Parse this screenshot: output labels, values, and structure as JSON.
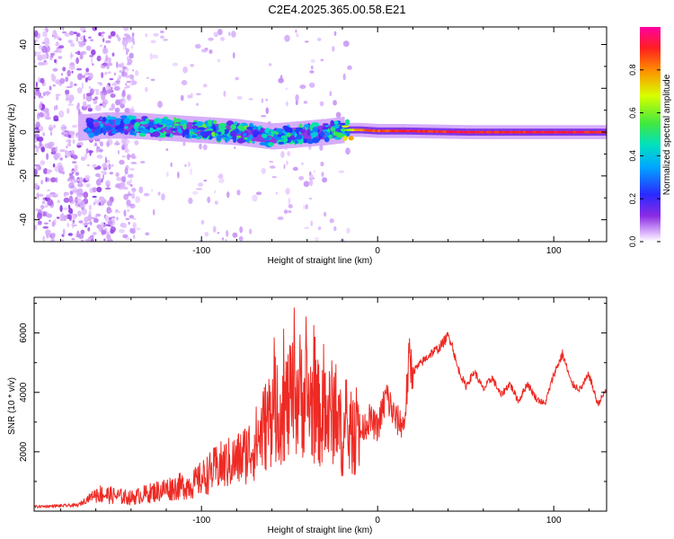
{
  "title": "C2E4.2025.365.00.58.E21",
  "colors": {
    "snr_line": "#ee2a24",
    "axis": "#000000"
  },
  "chart_data": [
    {
      "type": "heatmap",
      "xlabel": "Height of straight line (km)",
      "ylabel": "Frequency (Hz)",
      "xlim": [
        -195,
        130
      ],
      "ylim": [
        -50,
        48
      ],
      "x_ticks": [
        -100,
        0,
        100
      ],
      "x_tick_labels": [
        "-100",
        "0",
        "100"
      ],
      "y_ticks": [
        -40,
        -20,
        0,
        20,
        40
      ],
      "y_tick_labels": [
        "-40",
        "-20",
        "0",
        "20",
        "40"
      ],
      "colorbar": {
        "label": "Normalized spectral amplitude",
        "range": [
          0,
          1
        ],
        "ticks": [
          0.0,
          0.2,
          0.4,
          0.6,
          0.8
        ],
        "tick_labels": [
          "0.0",
          "0.2",
          "0.4",
          "0.6",
          "0.8"
        ]
      },
      "ridge": [
        {
          "x": -170,
          "f": 2,
          "amp": 0.3
        },
        {
          "x": -155,
          "f": 3,
          "amp": 0.35
        },
        {
          "x": -140,
          "f": 3,
          "amp": 0.4
        },
        {
          "x": -120,
          "f": 2,
          "amp": 0.45
        },
        {
          "x": -100,
          "f": 1,
          "amp": 0.5
        },
        {
          "x": -80,
          "f": 0,
          "amp": 0.5
        },
        {
          "x": -60,
          "f": -2,
          "amp": 0.45
        },
        {
          "x": -45,
          "f": -1,
          "amp": 0.45
        },
        {
          "x": -30,
          "f": 0,
          "amp": 0.4
        },
        {
          "x": -20,
          "f": 1,
          "amp": 0.55
        },
        {
          "x": -10,
          "f": 1,
          "amp": 0.85
        },
        {
          "x": 0,
          "f": 0.5,
          "amp": 0.9
        },
        {
          "x": 15,
          "f": 0.5,
          "amp": 0.95
        },
        {
          "x": 50,
          "f": 0,
          "amp": 0.95
        },
        {
          "x": 100,
          "f": 0,
          "amp": 0.95
        },
        {
          "x": 130,
          "f": 0,
          "amp": 0.95
        }
      ]
    },
    {
      "type": "line",
      "xlabel": "Height of straight line (km)",
      "ylabel": "SNR (10 * v/v)",
      "xlim": [
        -195,
        130
      ],
      "ylim": [
        0,
        7200
      ],
      "x_ticks": [
        -100,
        0,
        100
      ],
      "x_tick_labels": [
        "-100",
        "0",
        "100"
      ],
      "y_ticks": [
        2000,
        4000,
        6000
      ],
      "y_tick_labels": [
        "2000",
        "4000",
        "6000"
      ],
      "series": [
        {
          "name": "SNR",
          "x": [
            -195,
            -170,
            -160,
            -140,
            -120,
            -105,
            -90,
            -80,
            -70,
            -60,
            -50,
            -45,
            -40,
            -30,
            -25,
            -20,
            -15,
            -10,
            -5,
            0,
            5,
            10,
            15,
            18,
            20,
            25,
            30,
            35,
            40,
            42,
            45,
            50,
            55,
            60,
            65,
            70,
            75,
            80,
            85,
            90,
            95,
            100,
            105,
            110,
            115,
            120,
            125,
            130
          ],
          "y": [
            150,
            200,
            600,
            450,
            750,
            900,
            1500,
            1700,
            2200,
            3300,
            3600,
            4000,
            3800,
            3000,
            3400,
            2500,
            2600,
            2600,
            3100,
            2800,
            3900,
            3100,
            2900,
            5100,
            4700,
            5000,
            5300,
            5500,
            5900,
            5700,
            4900,
            4200,
            4700,
            4100,
            4500,
            3900,
            4300,
            3700,
            4300,
            3800,
            3600,
            4600,
            5300,
            4300,
            4100,
            4600,
            3600,
            4100
          ]
        }
      ]
    }
  ]
}
